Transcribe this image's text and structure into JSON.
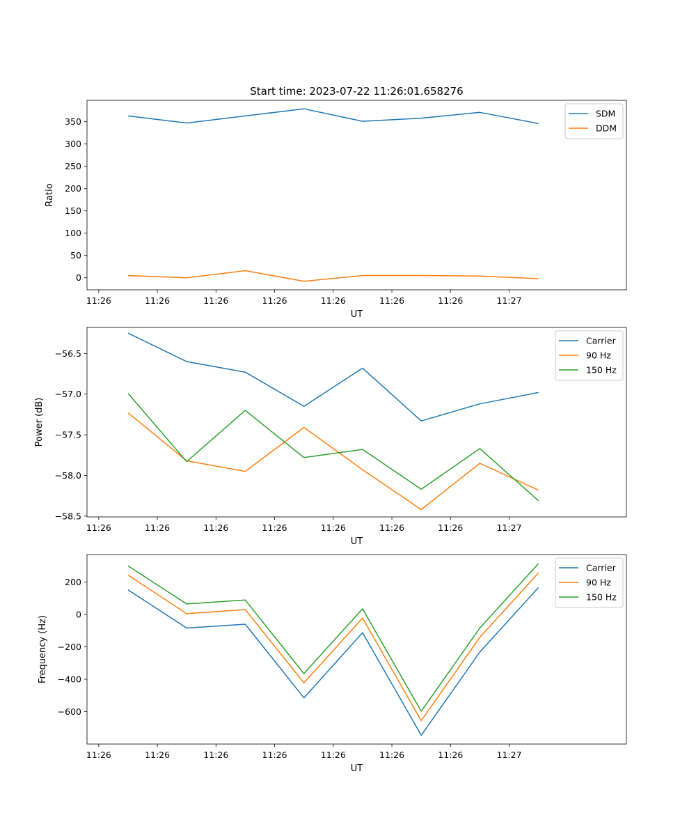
{
  "title": "Start time: 2023-07-22 11:26:01.658276",
  "colors": {
    "blue": "#1f77b4",
    "orange": "#ff7f0e",
    "green": "#2ca02c"
  },
  "chart_data": [
    {
      "type": "line",
      "xlabel": "UT",
      "ylabel": "Ratio",
      "x_tick_labels": [
        "11:26",
        "11:26",
        "11:26",
        "11:26",
        "11:26",
        "11:26",
        "11:26",
        "11:27"
      ],
      "xlim": [
        -0.2,
        9.0
      ],
      "ylim": [
        -27,
        398
      ],
      "yticks": [
        0,
        50,
        100,
        150,
        200,
        250,
        300,
        350
      ],
      "legend": "top-right",
      "x": [
        0.5,
        1.5,
        2.5,
        3.5,
        4.5,
        5.5,
        6.5,
        7.5
      ],
      "series": [
        {
          "name": "SDM",
          "color": "#1f77b4",
          "values": [
            363,
            347,
            363,
            379,
            351,
            358,
            371,
            346
          ]
        },
        {
          "name": "DDM",
          "color": "#ff7f0e",
          "values": [
            5,
            0,
            16,
            -8,
            5,
            5,
            4,
            -2
          ]
        }
      ]
    },
    {
      "type": "line",
      "xlabel": "UT",
      "ylabel": "Power (dB)",
      "x_tick_labels": [
        "11:26",
        "11:26",
        "11:26",
        "11:26",
        "11:26",
        "11:26",
        "11:26",
        "11:27"
      ],
      "xlim": [
        -0.2,
        9.0
      ],
      "ylim": [
        -58.51,
        -56.18
      ],
      "yticks": [
        -56.5,
        -57.0,
        -57.5,
        -58.0,
        -58.5
      ],
      "ytick_labels": [
        "−56.5",
        "−57.0",
        "−57.5",
        "−58.0",
        "−58.5"
      ],
      "legend": "top-right",
      "x": [
        0.5,
        1.5,
        2.5,
        3.5,
        4.5,
        5.5,
        6.5,
        7.5
      ],
      "series": [
        {
          "name": "Carrier",
          "color": "#1f77b4",
          "values": [
            -56.25,
            -56.6,
            -56.73,
            -57.15,
            -56.68,
            -57.33,
            -57.12,
            -56.98
          ]
        },
        {
          "name": "90 Hz",
          "color": "#ff7f0e",
          "values": [
            -57.23,
            -57.82,
            -57.95,
            -57.41,
            -57.93,
            -58.42,
            -57.85,
            -58.18
          ]
        },
        {
          "name": "150 Hz",
          "color": "#2ca02c",
          "values": [
            -56.99,
            -57.83,
            -57.2,
            -57.78,
            -57.68,
            -58.17,
            -57.67,
            -58.31
          ]
        }
      ]
    },
    {
      "type": "line",
      "xlabel": "UT",
      "ylabel": "Frequency (Hz)",
      "x_tick_labels": [
        "11:26",
        "11:26",
        "11:26",
        "11:26",
        "11:26",
        "11:26",
        "11:26",
        "11:27"
      ],
      "xlim": [
        -0.2,
        9.0
      ],
      "ylim": [
        -800,
        370
      ],
      "yticks": [
        200,
        0,
        -200,
        -400,
        -600
      ],
      "ytick_labels": [
        "200",
        "0",
        "−200",
        "−400",
        "−600"
      ],
      "legend": "top-right",
      "x": [
        0.5,
        1.5,
        2.5,
        3.5,
        4.5,
        5.5,
        6.5,
        7.5
      ],
      "series": [
        {
          "name": "Carrier",
          "color": "#1f77b4",
          "values": [
            152,
            -84,
            -60,
            -515,
            -112,
            -746,
            -232,
            166
          ]
        },
        {
          "name": "90 Hz",
          "color": "#ff7f0e",
          "values": [
            243,
            5,
            30,
            -422,
            -22,
            -656,
            -141,
            256
          ]
        },
        {
          "name": "150 Hz",
          "color": "#2ca02c",
          "values": [
            300,
            65,
            89,
            -365,
            35,
            -598,
            -84,
            314
          ]
        }
      ]
    }
  ]
}
